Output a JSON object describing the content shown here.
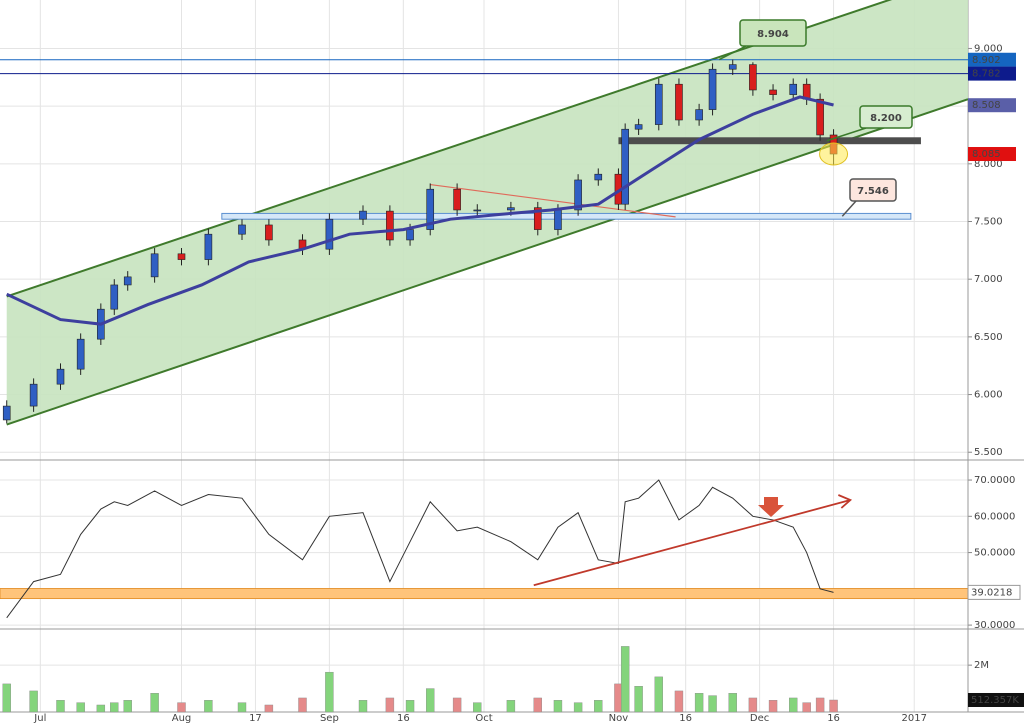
{
  "chart_data": [
    {
      "type": "candlestick",
      "x": [
        -5,
        -1,
        3,
        6,
        9,
        11,
        13,
        17,
        21,
        25,
        30,
        34,
        39,
        43,
        48,
        52,
        55,
        58,
        62,
        65,
        70,
        74,
        77,
        80,
        83,
        86,
        87,
        89,
        92,
        95,
        98,
        100,
        103,
        106,
        109,
        112,
        114,
        116,
        118
      ],
      "open": [
        5.78,
        5.9,
        6.09,
        6.22,
        6.48,
        6.74,
        6.95,
        7.02,
        7.22,
        7.17,
        7.39,
        7.47,
        7.34,
        7.26,
        7.52,
        7.59,
        7.34,
        7.43,
        7.78,
        7.6,
        7.6,
        7.62,
        7.43,
        7.6,
        7.86,
        7.91,
        7.65,
        8.3,
        8.34,
        8.69,
        8.38,
        8.47,
        8.82,
        8.86,
        8.64,
        8.6,
        8.69,
        8.56,
        8.25
      ],
      "high": [
        5.95,
        6.14,
        6.27,
        6.53,
        6.79,
        7.0,
        7.07,
        7.27,
        7.27,
        7.44,
        7.52,
        7.52,
        7.39,
        7.57,
        7.64,
        7.64,
        7.48,
        7.83,
        7.83,
        7.65,
        7.67,
        7.67,
        7.65,
        7.91,
        7.96,
        7.96,
        8.35,
        8.39,
        8.74,
        8.74,
        8.52,
        8.87,
        8.904,
        8.88,
        8.69,
        8.74,
        8.74,
        8.61,
        8.3
      ],
      "low": [
        5.75,
        5.85,
        6.04,
        6.17,
        6.43,
        6.69,
        6.9,
        6.97,
        7.12,
        7.12,
        7.34,
        7.29,
        7.21,
        7.21,
        7.47,
        7.29,
        7.29,
        7.38,
        7.55,
        7.55,
        7.55,
        7.38,
        7.38,
        7.55,
        7.81,
        7.6,
        7.6,
        8.25,
        8.29,
        8.33,
        8.33,
        8.42,
        8.77,
        8.59,
        8.55,
        8.55,
        8.51,
        8.2,
        7.99
      ],
      "close": [
        5.9,
        6.09,
        6.22,
        6.48,
        6.74,
        6.95,
        7.02,
        7.22,
        7.17,
        7.39,
        7.47,
        7.34,
        7.26,
        7.52,
        7.59,
        7.34,
        7.43,
        7.78,
        7.6,
        7.6,
        7.62,
        7.43,
        7.6,
        7.86,
        7.91,
        7.65,
        8.3,
        8.34,
        8.69,
        8.38,
        8.47,
        8.82,
        8.86,
        8.64,
        8.6,
        8.69,
        8.56,
        8.25,
        8.085
      ],
      "up_color": "#2f5fc4",
      "down_color": "#d81e1e",
      "ma_x": [
        -5,
        3,
        9,
        16,
        24,
        31,
        39,
        46,
        54,
        61,
        68,
        76,
        83,
        91,
        98,
        106,
        113,
        118
      ],
      "ma_values": [
        6.87,
        6.65,
        6.61,
        6.78,
        6.95,
        7.15,
        7.26,
        7.39,
        7.43,
        7.52,
        7.56,
        7.6,
        7.65,
        7.95,
        8.21,
        8.43,
        8.58,
        8.51
      ],
      "ma_color": "#3d3f9e",
      "channel": {
        "x": [
          -5,
          138
        ],
        "lower": [
          5.74,
          8.56
        ],
        "upper": [
          6.85,
          9.65
        ],
        "color": "#3f7a2c",
        "fill": "#c6e3bf"
      },
      "trendline": {
        "x": [
          58,
          94.5
        ],
        "values": [
          7.82,
          7.54
        ],
        "color": "#e06a5a"
      },
      "zones": [
        {
          "x": [
            86,
            131
          ],
          "y": [
            8.17,
            8.23
          ],
          "color": "#4d4d4d"
        },
        {
          "x": [
            27,
            129.5
          ],
          "y": [
            7.52,
            7.57
          ],
          "color": "#d5e7f8"
        }
      ],
      "axis_markers": [
        {
          "value": 8.902,
          "color": "#1565c0",
          "line": true
        },
        {
          "value": 8.782,
          "color": "#0d1b8c",
          "line": true
        },
        {
          "value": 8.508,
          "color": "#5a5fa8",
          "line": false
        },
        {
          "value": 8.085,
          "color": "#e01010",
          "line": false
        }
      ],
      "callouts": [
        {
          "value": 8.904,
          "x": 101
        },
        {
          "value": {
            "value": 8.2,
            "label": "8.200"
          },
          "x": 117
        },
        {
          "value": 7.546,
          "x": 119.3
        }
      ],
      "xlim": [
        -6,
        138
      ],
      "xticks": [
        {
          "value": 0,
          "label": "Jul"
        },
        {
          "value": 21,
          "label": "Aug"
        },
        {
          "value": 32,
          "label": "17"
        },
        {
          "value": 43,
          "label": "Sep"
        },
        {
          "value": 54,
          "label": "16"
        },
        {
          "value": 66,
          "label": "Oct"
        },
        {
          "value": 86,
          "label": "Nov"
        },
        {
          "value": 96,
          "label": "16"
        },
        {
          "value": 107,
          "label": "Dec"
        },
        {
          "value": 118,
          "label": "16"
        },
        {
          "value": 130,
          "label": "2017"
        }
      ],
      "ylim": [
        5.45,
        9.42
      ],
      "yticks": [
        {
          "value": 5.5,
          "label": "5.500"
        },
        {
          "value": 6,
          "label": "6.000"
        },
        {
          "value": 6.5,
          "label": "6.500"
        },
        {
          "value": 7,
          "label": "7.000"
        },
        {
          "value": 7.5,
          "label": "7.500"
        },
        {
          "value": 8,
          "label": "8.000"
        },
        {
          "value": 8.5,
          "label": "8.500"
        },
        {
          "value": 9,
          "label": "9.000"
        }
      ],
      "grid": true
    },
    {
      "type": "line",
      "values": [
        32,
        42,
        44,
        55,
        62,
        64,
        63,
        67,
        63,
        66,
        65,
        55,
        48,
        60,
        61,
        42,
        53,
        64,
        56,
        57,
        53,
        48,
        57,
        61,
        48,
        47,
        64,
        65,
        70,
        59,
        63,
        68,
        65,
        60,
        59,
        57,
        50,
        40,
        39.0218
      ],
      "color": "#333333",
      "band": [
        37.3,
        40.1
      ],
      "band_color": "#ffc47a",
      "trendline": {
        "x": [
          73.4,
          120.5
        ],
        "values": [
          41,
          64.5
        ],
        "color": "#c0392b"
      },
      "last": 39.0218,
      "ylim": [
        29.2,
        74.7
      ],
      "yticks": [
        {
          "value": 30,
          "label": "30.0000"
        },
        {
          "value": 40,
          "label": "40.0000"
        },
        {
          "value": 50,
          "label": "50.0000"
        },
        {
          "value": 60,
          "label": "60.0000"
        },
        {
          "value": 70,
          "label": "70.0000"
        }
      ]
    },
    {
      "type": "bar",
      "values": [
        1200000,
        900000,
        500000,
        400000,
        300000,
        400000,
        500000,
        800000,
        400000,
        500000,
        400000,
        300000,
        600000,
        1700000,
        500000,
        600000,
        500000,
        1000000,
        600000,
        400000,
        500000,
        600000,
        500000,
        400000,
        500000,
        1200000,
        2800000,
        1100000,
        1500000,
        900000,
        800000,
        700000,
        800000,
        600000,
        500000,
        600000,
        400000,
        600000,
        512357
      ],
      "up_color": "#84d47c",
      "down_color": "#e58a8a",
      "last": {
        "value": 512357,
        "label": "512.357K"
      },
      "ylim": [
        0,
        3500000
      ],
      "yticks": [
        {
          "value": 2000000,
          "label": "2M"
        }
      ]
    }
  ]
}
